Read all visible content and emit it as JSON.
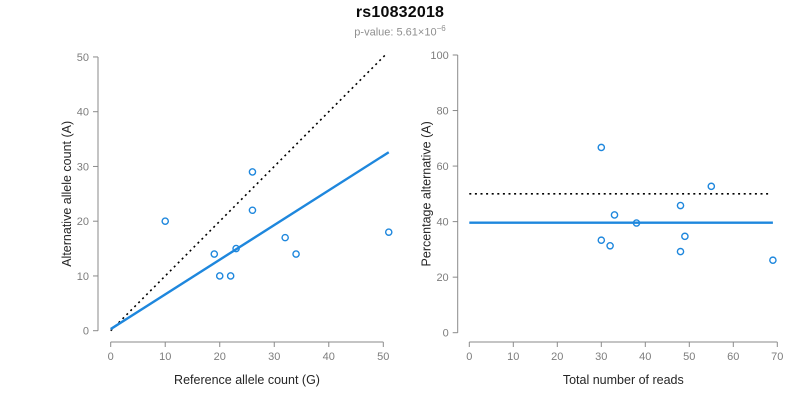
{
  "header": {
    "title": "rs10832018",
    "subtitle_prefix": "p-value: 5.61×10",
    "subtitle_exponent": "−6"
  },
  "colors": {
    "accent_blue": "#1e87dd",
    "dotted_line_black": "#000000",
    "axis_gray": "#8a8a8a",
    "tick_label_gray": "#7d7d7d",
    "axis_title_dark": "#262626",
    "subtitle_gray": "#8f8f8f"
  },
  "chart_data": [
    {
      "type": "scatter",
      "name": "allele-counts-scatter",
      "xlabel": "Reference allele count (G)",
      "ylabel": "Alternative allele count (A)",
      "xlim": [
        0,
        50
      ],
      "ylim": [
        0,
        50
      ],
      "x_ticks": [
        0,
        10,
        20,
        30,
        40,
        50
      ],
      "y_ticks": [
        0,
        10,
        20,
        30,
        40,
        50
      ],
      "grid": false,
      "points": [
        [
          10,
          20
        ],
        [
          19,
          14
        ],
        [
          20,
          10
        ],
        [
          22,
          10
        ],
        [
          23,
          15
        ],
        [
          26,
          22
        ],
        [
          26,
          29
        ],
        [
          32,
          17
        ],
        [
          34,
          14
        ],
        [
          51,
          18
        ]
      ],
      "lines": [
        {
          "name": "identity-dotted-line",
          "style": "dotted",
          "color": "#000000",
          "from": [
            0,
            0
          ],
          "to": [
            50.5,
            50.5
          ]
        },
        {
          "name": "regression-line",
          "style": "solid",
          "color": "#1e87dd",
          "from": [
            0,
            0.3
          ],
          "to": [
            51,
            32.6
          ]
        }
      ]
    },
    {
      "type": "scatter",
      "name": "percentage-vs-reads-scatter",
      "xlabel": "Total number of reads",
      "ylabel": "Percentage alternative (A)",
      "xlim": [
        0,
        70
      ],
      "ylim": [
        0,
        100
      ],
      "x_ticks": [
        0,
        10,
        20,
        30,
        40,
        50,
        60,
        70
      ],
      "y_ticks": [
        0,
        20,
        40,
        60,
        80,
        100
      ],
      "grid": false,
      "points": [
        [
          30,
          66.7
        ],
        [
          30,
          33.3
        ],
        [
          32,
          31.3
        ],
        [
          33,
          42.4
        ],
        [
          38,
          39.5
        ],
        [
          48,
          45.8
        ],
        [
          48,
          29.2
        ],
        [
          49,
          34.7
        ],
        [
          55,
          52.7
        ],
        [
          69,
          26.1
        ]
      ],
      "lines": [
        {
          "name": "null-50pct-dotted-line",
          "style": "dotted",
          "color": "#000000",
          "from": [
            0,
            50
          ],
          "to": [
            68,
            50
          ]
        },
        {
          "name": "mean-percentage-line",
          "style": "solid",
          "color": "#1e87dd",
          "from": [
            0,
            39.6
          ],
          "to": [
            69,
            39.6
          ]
        }
      ]
    }
  ]
}
